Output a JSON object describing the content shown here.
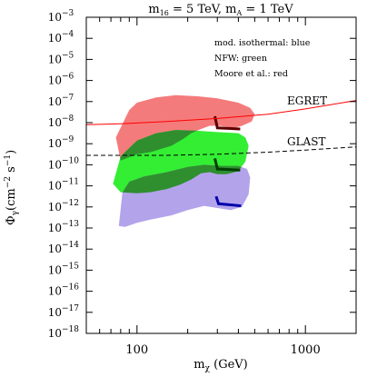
{
  "chart_data": {
    "type": "area",
    "title_parts": {
      "m_base": "m",
      "m_sub": "16",
      "m_value": " = 5 TeV, m",
      "a_sub": "A",
      "a_value": " = 1 TeV"
    },
    "xlabel_parts": {
      "base": "m",
      "sub": "χ",
      "unit": " (GeV)"
    },
    "ylabel_parts": {
      "base": "Φ",
      "sub": "γ",
      "unit": "(cm",
      "exp": "−2",
      "tail": " s",
      "exp2": "−1",
      "close": ")"
    },
    "x_scale": "log",
    "y_scale": "log",
    "xlim": [
      50,
      2000
    ],
    "ylim_exp": [
      -18,
      -3
    ],
    "x_tick_labels": [
      {
        "value": 100,
        "label": "100"
      },
      {
        "value": 1000,
        "label": "1000"
      }
    ],
    "y_tick_exponents": [
      -3,
      -4,
      -5,
      -6,
      -7,
      -8,
      -9,
      -10,
      -11,
      -12,
      -13,
      -14,
      -15,
      -16,
      -17,
      -18
    ],
    "legend_lines": [
      "mod. isothermal: blue",
      "NFW: green",
      "Moore et al.: red"
    ],
    "regions": [
      {
        "name": "Moore et al.",
        "color": "#f47b7b",
        "points": [
          [
            75,
            -8.7
          ],
          [
            90,
            -7.4
          ],
          [
            100,
            -7.05
          ],
          [
            130,
            -6.8
          ],
          [
            170,
            -6.7
          ],
          [
            230,
            -6.75
          ],
          [
            300,
            -6.85
          ],
          [
            400,
            -7.05
          ],
          [
            470,
            -7.3
          ],
          [
            500,
            -7.6
          ],
          [
            480,
            -7.95
          ],
          [
            420,
            -8.15
          ],
          [
            380,
            -8.25
          ],
          [
            340,
            -8.2
          ],
          [
            310,
            -8.15
          ],
          [
            270,
            -8.15
          ],
          [
            240,
            -8.3
          ],
          [
            210,
            -8.5
          ],
          [
            190,
            -8.75
          ],
          [
            160,
            -9.1
          ],
          [
            120,
            -9.4
          ],
          [
            100,
            -9.5
          ],
          [
            80,
            -9.8
          ]
        ]
      },
      {
        "name": "NFW",
        "color": "#33ee33",
        "points": [
          [
            72,
            -10.9
          ],
          [
            80,
            -9.6
          ],
          [
            100,
            -8.85
          ],
          [
            130,
            -8.5
          ],
          [
            170,
            -8.35
          ],
          [
            220,
            -8.38
          ],
          [
            300,
            -8.45
          ],
          [
            400,
            -8.5
          ],
          [
            440,
            -8.7
          ],
          [
            460,
            -9.1
          ],
          [
            440,
            -9.85
          ],
          [
            400,
            -10.3
          ],
          [
            340,
            -10.45
          ],
          [
            300,
            -10.45
          ],
          [
            270,
            -10.35
          ],
          [
            240,
            -10.4
          ],
          [
            210,
            -10.7
          ],
          [
            180,
            -10.95
          ],
          [
            150,
            -11.15
          ],
          [
            120,
            -11.3
          ],
          [
            100,
            -11.35
          ],
          [
            80,
            -11.3
          ]
        ]
      },
      {
        "name": "mod. isothermal",
        "color": "#b3a3ea",
        "points": [
          [
            78,
            -12.9
          ],
          [
            82,
            -11.3
          ],
          [
            90,
            -10.8
          ],
          [
            110,
            -10.55
          ],
          [
            150,
            -10.35
          ],
          [
            200,
            -10.1
          ],
          [
            250,
            -10.0
          ],
          [
            320,
            -10.05
          ],
          [
            400,
            -10.05
          ],
          [
            450,
            -10.2
          ],
          [
            470,
            -10.6
          ],
          [
            460,
            -11.4
          ],
          [
            420,
            -12.0
          ],
          [
            360,
            -12.15
          ],
          [
            300,
            -12.05
          ],
          [
            250,
            -11.95
          ],
          [
            200,
            -12.15
          ],
          [
            160,
            -12.4
          ],
          [
            120,
            -12.6
          ],
          [
            100,
            -12.75
          ],
          [
            85,
            -12.95
          ]
        ]
      }
    ],
    "overlap_color": "#2f8f2f",
    "markers": [
      {
        "name": "red-end",
        "color": "#5a0000",
        "points": [
          [
            290,
            -7.7
          ],
          [
            300,
            -8.25
          ],
          [
            410,
            -8.3
          ]
        ]
      },
      {
        "name": "green-end",
        "color": "#004000",
        "points": [
          [
            290,
            -9.7
          ],
          [
            300,
            -10.2
          ],
          [
            410,
            -10.25
          ]
        ]
      },
      {
        "name": "blue-end",
        "color": "#0000aa",
        "points": [
          [
            295,
            -11.5
          ],
          [
            305,
            -11.85
          ],
          [
            415,
            -11.95
          ]
        ]
      }
    ],
    "lines": [
      {
        "name": "EGRET",
        "label": "EGRET",
        "style": "solid",
        "color": "#ff0000",
        "points": [
          [
            50,
            -8.1
          ],
          [
            80,
            -8.05
          ],
          [
            150,
            -7.95
          ],
          [
            300,
            -7.8
          ],
          [
            600,
            -7.6
          ],
          [
            1000,
            -7.35
          ],
          [
            2000,
            -6.95
          ]
        ]
      },
      {
        "name": "GLAST",
        "label": "GLAST",
        "style": "dashed",
        "color": "#000000",
        "points": [
          [
            50,
            -9.55
          ],
          [
            80,
            -9.55
          ],
          [
            150,
            -9.55
          ],
          [
            300,
            -9.5
          ],
          [
            600,
            -9.4
          ],
          [
            1000,
            -9.3
          ],
          [
            2000,
            -9.15
          ]
        ]
      }
    ]
  }
}
